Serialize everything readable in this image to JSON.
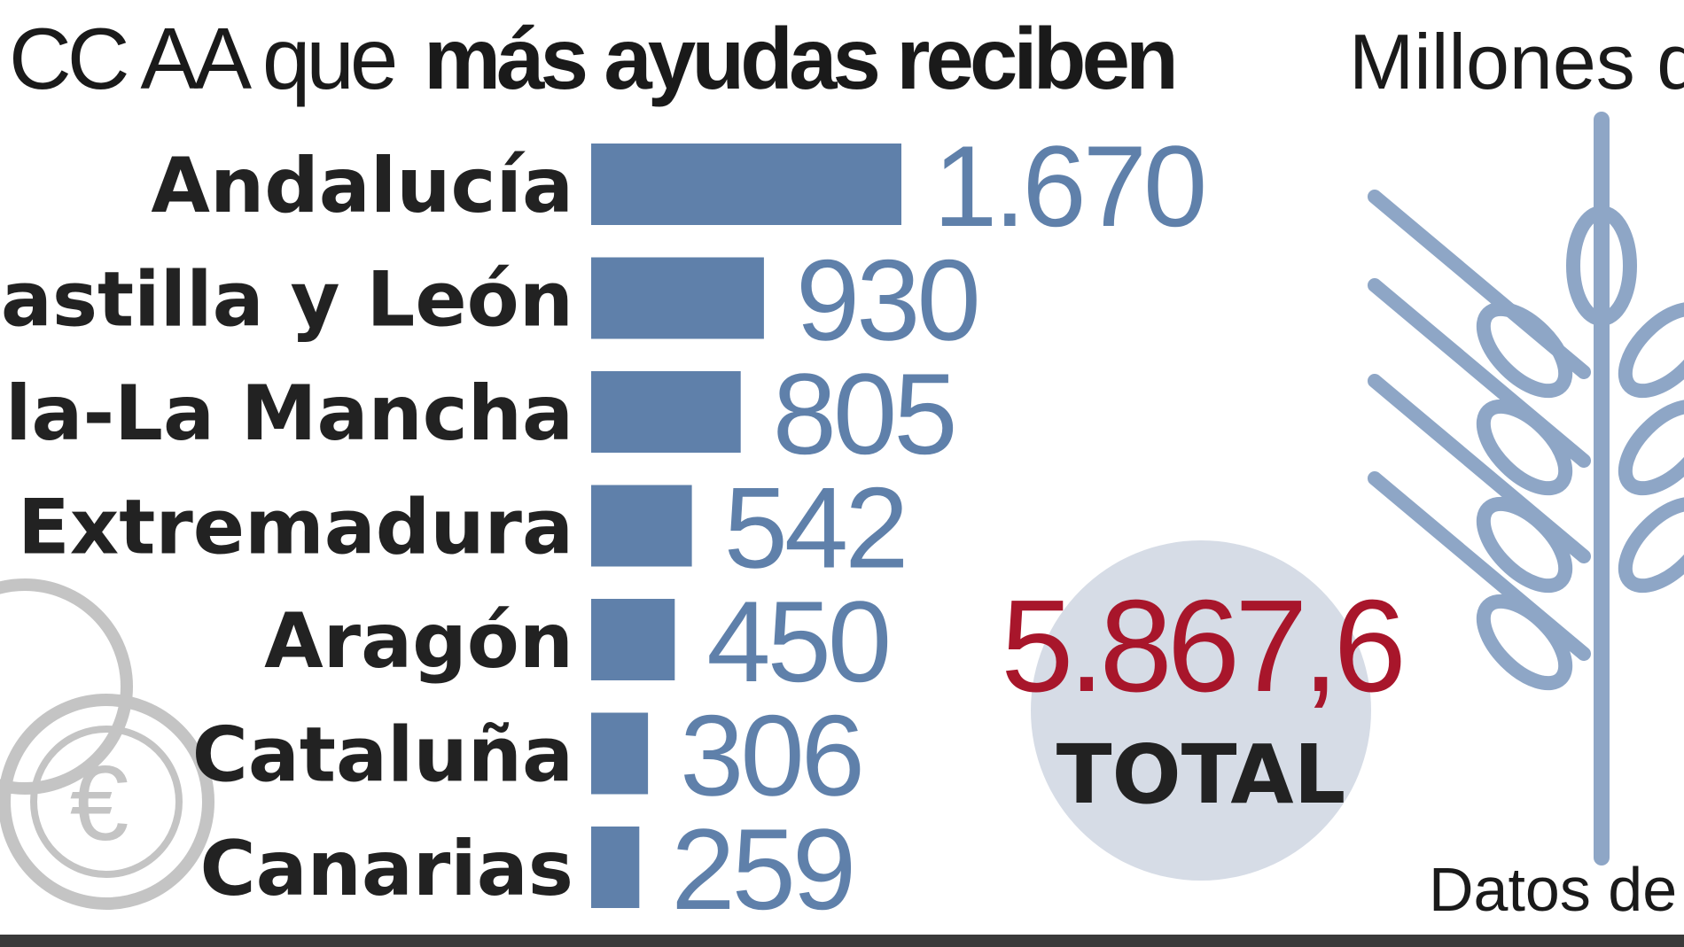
{
  "colors": {
    "bar": "#5f80aa",
    "value_text": "#5f80aa",
    "label_text": "#222222",
    "title_text": "#1a1a1a",
    "total_value": "#a8162b",
    "total_circle": "#d6dce6",
    "wheat": "#8ea6c6",
    "coins": "#c4c4c4",
    "bottom_rule": "#3a3a3a"
  },
  "header": {
    "title_light": "CC AA que",
    "title_bold": "más ayudas reciben",
    "units_text": "Millones d"
  },
  "footer": {
    "source_text": "Datos de"
  },
  "total": {
    "value": "5.867,6",
    "label": "TOTAL"
  },
  "icons": {
    "coins": "euro-coins-icon",
    "wheat": "wheat-icon"
  },
  "chart_data": {
    "type": "bar",
    "orientation": "horizontal",
    "categories": [
      "Andalucía",
      "Castilla y León",
      "Castilla-La Mancha",
      "Extremadura",
      "Aragón",
      "Cataluña",
      "Canarias"
    ],
    "category_labels_visible": [
      "Andalucía",
      "Castilla y León",
      "tilla-La Mancha",
      "Extremadura",
      "Aragón",
      "Cataluña",
      "Canarias"
    ],
    "values": [
      1670,
      930,
      805,
      542,
      450,
      306,
      259
    ],
    "value_labels": [
      "1.670",
      "930",
      "805",
      "542",
      "450",
      "306",
      "259"
    ],
    "title": "CC AA que más ayudas reciben",
    "xlabel": "",
    "ylabel": "",
    "grid": false,
    "legend": "none"
  }
}
